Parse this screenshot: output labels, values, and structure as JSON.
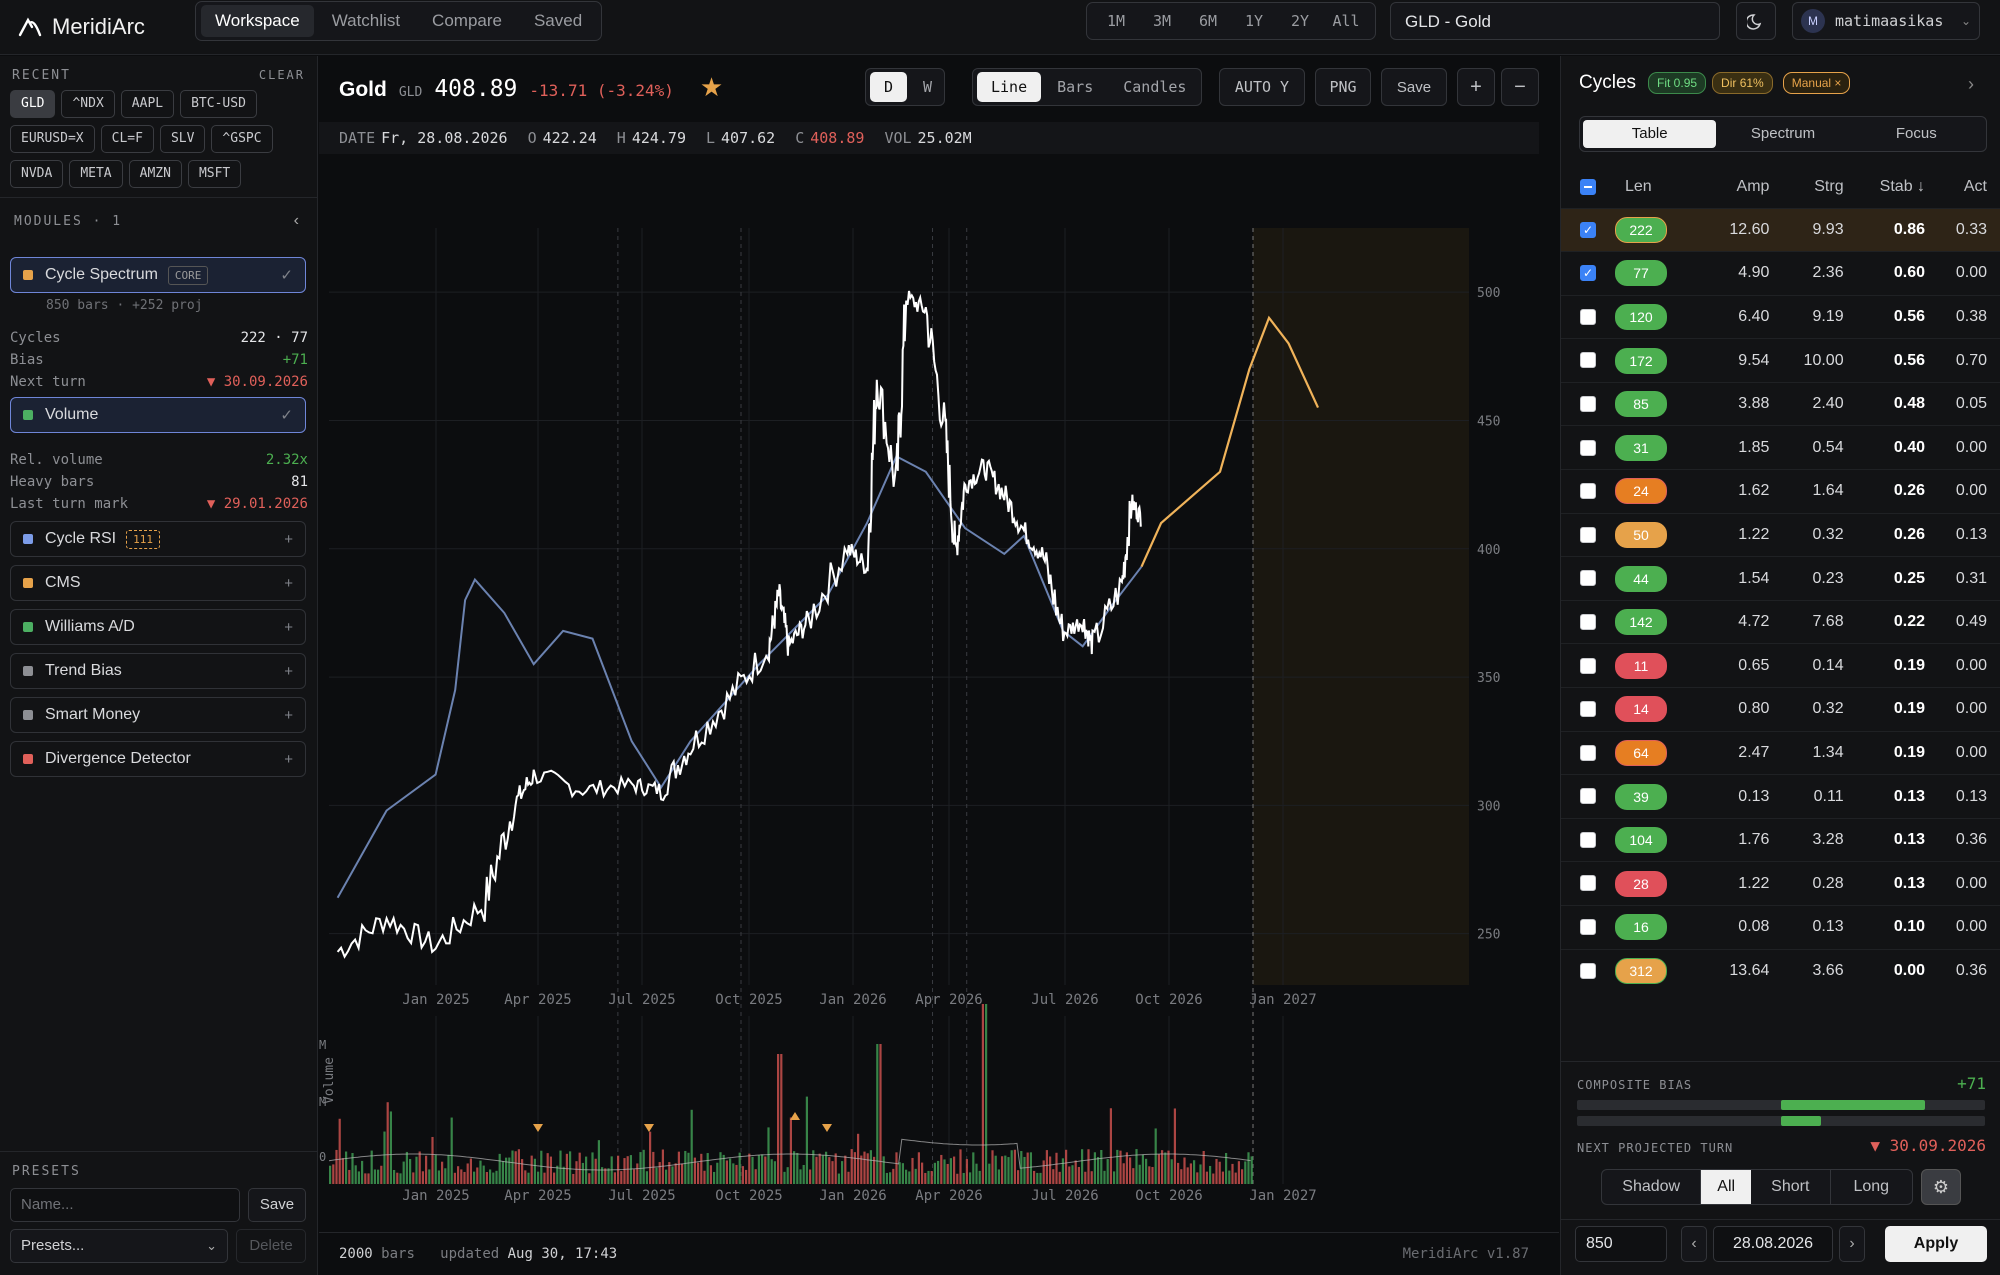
{
  "app": {
    "name": "MeridiArc",
    "version": "MeridiArc v1.87"
  },
  "nav": {
    "tabs": [
      "Workspace",
      "Watchlist",
      "Compare",
      "Saved"
    ],
    "active": "Workspace"
  },
  "ranges": [
    "1M",
    "3M",
    "6M",
    "1Y",
    "2Y",
    "All"
  ],
  "symbol_field": "GLD - Gold",
  "user": {
    "initial": "M",
    "name": "matimaasikas"
  },
  "sidebar": {
    "recent_label": "RECENT",
    "clear_label": "CLEAR",
    "recent": [
      "GLD",
      "^NDX",
      "AAPL",
      "BTC-USD",
      "EURUSD=X",
      "CL=F",
      "SLV",
      "^GSPC",
      "NVDA",
      "META",
      "AMZN",
      "MSFT"
    ],
    "modules_label": "MODULES · 1",
    "cycle_spectrum": {
      "name": "Cycle Spectrum",
      "tag": "CORE",
      "sub": "850 bars · +252 proj",
      "rows": [
        {
          "k": "Cycles",
          "v": "222 · 77"
        },
        {
          "k": "Bias",
          "v": "+71"
        },
        {
          "k": "Next turn",
          "v": "▼ 30.09.2026"
        }
      ]
    },
    "volume": {
      "name": "Volume",
      "rows": [
        {
          "k": "Rel. volume",
          "v": "2.32x"
        },
        {
          "k": "Heavy bars",
          "v": "81"
        },
        {
          "k": "Last turn mark",
          "v": "▼ 29.01.2026"
        }
      ]
    },
    "modules": [
      {
        "name": "Cycle RSI",
        "tag": "111",
        "color": "#7c9ce8"
      },
      {
        "name": "CMS",
        "color": "#e6a24a"
      },
      {
        "name": "Williams A/D",
        "color": "#4caf62"
      },
      {
        "name": "Trend Bias",
        "color": "#8d8f94"
      },
      {
        "name": "Smart Money",
        "color": "#8d8f94"
      },
      {
        "name": "Divergence Detector",
        "color": "#e0605a"
      }
    ],
    "presets_label": "PRESETS",
    "name_placeholder": "Name...",
    "save": "Save",
    "presets_select": "Presets...",
    "delete": "Delete"
  },
  "header": {
    "name": "Gold",
    "ticker": "GLD",
    "price": "408.89",
    "change": "-13.71 (-3.24%)"
  },
  "toolbar": {
    "period": [
      "D",
      "W"
    ],
    "styles": [
      "Line",
      "Bars",
      "Candles"
    ],
    "autoy": "AUTO Y",
    "png": "PNG",
    "save": "Save",
    "plus": "+",
    "minus": "−"
  },
  "ohlc": {
    "date_l": "DATE",
    "date": "Fr, 28.08.2026",
    "o_l": "O",
    "o": "422.24",
    "h_l": "H",
    "h": "424.79",
    "l_l": "L",
    "l": "407.62",
    "c_l": "C",
    "c": "408.89",
    "vol_l": "VOL",
    "vol": "25.02M"
  },
  "chart_data": {
    "type": "line",
    "x_ticks": [
      "Jan 2025",
      "Apr 2025",
      "Jul 2025",
      "Oct 2025",
      "Jan 2026",
      "Apr 2026",
      "Jul 2026",
      "Oct 2026",
      "Jan 2027"
    ],
    "y_ticks": [
      "500",
      "450",
      "400",
      "350",
      "300",
      "250"
    ],
    "ylim": [
      230,
      525
    ],
    "series": [
      {
        "values": [
          [
            0,
            243
          ],
          [
            0.05,
            256
          ],
          [
            0.1,
            245
          ],
          [
            0.15,
            262
          ],
          [
            0.18,
            300
          ],
          [
            0.2,
            312
          ],
          [
            0.25,
            306
          ],
          [
            0.3,
            308
          ],
          [
            0.33,
            306
          ],
          [
            0.36,
            323
          ],
          [
            0.4,
            342
          ],
          [
            0.44,
            362
          ],
          [
            0.45,
            382
          ],
          [
            0.46,
            362
          ],
          [
            0.48,
            372
          ],
          [
            0.52,
            400
          ],
          [
            0.54,
            393
          ],
          [
            0.55,
            468
          ],
          [
            0.57,
            423
          ],
          [
            0.58,
            498
          ],
          [
            0.6,
            493
          ],
          [
            0.62,
            445
          ],
          [
            0.63,
            398
          ],
          [
            0.64,
            425
          ],
          [
            0.66,
            432
          ],
          [
            0.68,
            421
          ],
          [
            0.7,
            407
          ],
          [
            0.72,
            397
          ],
          [
            0.74,
            367
          ],
          [
            0.76,
            372
          ],
          [
            0.77,
            362
          ],
          [
            0.8,
            386
          ],
          [
            0.81,
            418
          ],
          [
            0.82,
            412
          ]
        ]
      },
      {
        "values": [
          [
            0,
            264
          ],
          [
            0.05,
            298
          ],
          [
            0.1,
            312
          ],
          [
            0.12,
            345
          ],
          [
            0.13,
            380
          ],
          [
            0.14,
            388
          ],
          [
            0.17,
            375
          ],
          [
            0.2,
            355
          ],
          [
            0.23,
            368
          ],
          [
            0.26,
            365
          ],
          [
            0.3,
            325
          ],
          [
            0.33,
            307
          ],
          [
            0.36,
            325
          ],
          [
            0.43,
            355
          ],
          [
            0.5,
            382
          ],
          [
            0.54,
            410
          ],
          [
            0.57,
            436
          ],
          [
            0.6,
            430
          ],
          [
            0.64,
            408
          ],
          [
            0.68,
            398
          ],
          [
            0.7,
            405
          ],
          [
            0.74,
            368
          ],
          [
            0.76,
            362
          ],
          [
            0.79,
            378
          ],
          [
            0.82,
            393
          ]
        ]
      },
      {
        "values": [
          [
            0.82,
            393
          ],
          [
            0.84,
            410
          ],
          [
            0.87,
            420
          ],
          [
            0.9,
            430
          ],
          [
            0.93,
            470
          ],
          [
            0.95,
            490
          ],
          [
            0.97,
            480
          ],
          [
            1,
            455
          ]
        ]
      }
    ]
  },
  "volume_chart": {
    "y_ticks": [
      "M",
      "M",
      "0"
    ],
    "ylabel": "Volume"
  },
  "footer": {
    "bars": "2000",
    "bars_label": "bars",
    "updated_label": "updated",
    "updated": "Aug 30, 17:43"
  },
  "cycles": {
    "title": "Cycles",
    "fit": "Fit 0.95",
    "dir": "Dir 61%",
    "manual": "Manual ×",
    "tabs": [
      "Table",
      "Spectrum",
      "Focus"
    ],
    "headers": [
      "Len",
      "Amp",
      "Strg",
      "Stab ↓",
      "Act"
    ],
    "rows": [
      {
        "len": "222",
        "amp": "12.60",
        "strg": "9.93",
        "stab": "0.86",
        "act": "0.33",
        "c": "#4caf50",
        "b": "#e6a24a",
        "on": true,
        "hl": true
      },
      {
        "len": "77",
        "amp": "4.90",
        "strg": "2.36",
        "stab": "0.60",
        "act": "0.00",
        "c": "#4caf50",
        "on": true
      },
      {
        "len": "120",
        "amp": "6.40",
        "strg": "9.19",
        "stab": "0.56",
        "act": "0.38",
        "c": "#4caf50"
      },
      {
        "len": "172",
        "amp": "9.54",
        "strg": "10.00",
        "stab": "0.56",
        "act": "0.70",
        "c": "#4caf50"
      },
      {
        "len": "85",
        "amp": "3.88",
        "strg": "2.40",
        "stab": "0.48",
        "act": "0.05",
        "c": "#4caf50"
      },
      {
        "len": "31",
        "amp": "1.85",
        "strg": "0.54",
        "stab": "0.40",
        "act": "0.00",
        "c": "#4caf50"
      },
      {
        "len": "24",
        "amp": "1.62",
        "strg": "1.64",
        "stab": "0.26",
        "act": "0.00",
        "c": "#e67e22",
        "b": "#e0605a"
      },
      {
        "len": "50",
        "amp": "1.22",
        "strg": "0.32",
        "stab": "0.26",
        "act": "0.13",
        "c": "#e6a24a"
      },
      {
        "len": "44",
        "amp": "1.54",
        "strg": "0.23",
        "stab": "0.25",
        "act": "0.31",
        "c": "#4caf50"
      },
      {
        "len": "142",
        "amp": "4.72",
        "strg": "7.68",
        "stab": "0.22",
        "act": "0.49",
        "c": "#4caf50"
      },
      {
        "len": "11",
        "amp": "0.65",
        "strg": "0.14",
        "stab": "0.19",
        "act": "0.00",
        "c": "#e0505a"
      },
      {
        "len": "14",
        "amp": "0.80",
        "strg": "0.32",
        "stab": "0.19",
        "act": "0.00",
        "c": "#e0505a"
      },
      {
        "len": "64",
        "amp": "2.47",
        "strg": "1.34",
        "stab": "0.19",
        "act": "0.00",
        "c": "#e67e22",
        "b": "#e0605a"
      },
      {
        "len": "39",
        "amp": "0.13",
        "strg": "0.11",
        "stab": "0.13",
        "act": "0.13",
        "c": "#4caf50"
      },
      {
        "len": "104",
        "amp": "1.76",
        "strg": "3.28",
        "stab": "0.13",
        "act": "0.36",
        "c": "#4caf50"
      },
      {
        "len": "28",
        "amp": "1.22",
        "strg": "0.28",
        "stab": "0.13",
        "act": "0.00",
        "c": "#e0505a"
      },
      {
        "len": "16",
        "amp": "0.08",
        "strg": "0.13",
        "stab": "0.10",
        "act": "0.00",
        "c": "#4caf50"
      },
      {
        "len": "312",
        "amp": "13.64",
        "strg": "3.66",
        "stab": "0.00",
        "act": "0.36",
        "c": "#e6a24a",
        "b": "#4caf50"
      }
    ],
    "composite_label": "COMPOSITE BIAS",
    "composite": "+71",
    "turn_label": "NEXT PROJECTED TURN",
    "turn": "▼ 30.09.2026",
    "modes": [
      "Shadow",
      "All",
      "Short",
      "Long"
    ],
    "bars_input": "850",
    "date_input": "28.08.2026",
    "apply": "Apply"
  }
}
